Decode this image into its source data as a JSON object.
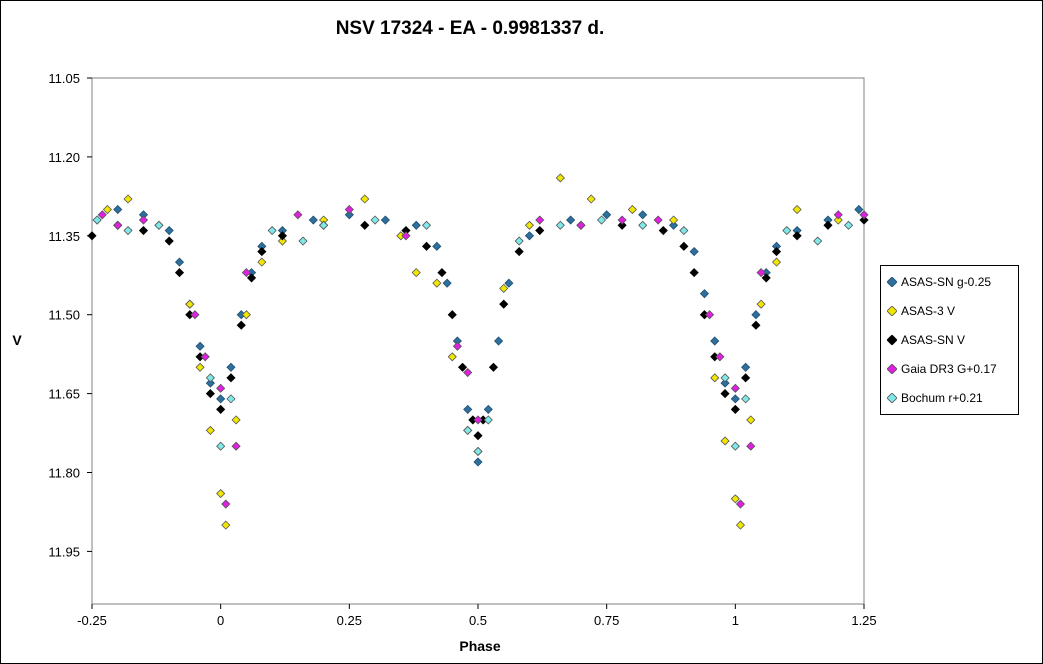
{
  "chart_data": {
    "type": "scatter",
    "title": "NSV 17324 - EA - 0.9981337 d.",
    "xlabel": "Phase",
    "ylabel": "V",
    "xlim": [
      -0.25,
      1.25
    ],
    "ylim": [
      11.05,
      12.05
    ],
    "y_inverted": true,
    "x_ticks": [
      "-0.25",
      "0",
      "0.25",
      "0.5",
      "0.75",
      "1",
      "1.25"
    ],
    "y_ticks": [
      "11.05",
      "11.20",
      "11.35",
      "11.50",
      "11.65",
      "11.80",
      "11.95"
    ],
    "grid": false,
    "legend_position": "right",
    "series": [
      {
        "name": "ASAS-SN g-0.25",
        "color": "#2e6f9b",
        "marker": "diamond",
        "x": [
          -0.24,
          -0.2,
          -0.15,
          -0.1,
          -0.08,
          -0.06,
          -0.04,
          -0.02,
          0.0,
          0.02,
          0.04,
          0.06,
          0.08,
          0.12,
          0.18,
          0.25,
          0.32,
          0.38,
          0.42,
          0.44,
          0.46,
          0.48,
          0.5,
          0.52,
          0.54,
          0.56,
          0.6,
          0.68,
          0.75,
          0.82,
          0.88,
          0.92,
          0.94,
          0.96,
          0.98,
          1.0,
          1.02,
          1.04,
          1.06,
          1.08,
          1.12,
          1.18,
          1.24
        ],
        "y": [
          11.32,
          11.3,
          11.31,
          11.34,
          11.4,
          11.48,
          11.56,
          11.63,
          11.66,
          11.6,
          11.5,
          11.42,
          11.37,
          11.34,
          11.32,
          11.31,
          11.32,
          11.33,
          11.37,
          11.44,
          11.55,
          11.68,
          11.78,
          11.68,
          11.55,
          11.44,
          11.35,
          11.32,
          11.31,
          11.31,
          11.33,
          11.38,
          11.46,
          11.55,
          11.63,
          11.66,
          11.6,
          11.5,
          11.42,
          11.37,
          11.34,
          11.32,
          11.3
        ]
      },
      {
        "name": "ASAS-3 V",
        "color": "#f2e600",
        "marker": "diamond",
        "x": [
          -0.22,
          -0.18,
          -0.12,
          -0.06,
          -0.04,
          -0.02,
          0.0,
          0.01,
          0.03,
          0.05,
          0.08,
          0.12,
          0.2,
          0.28,
          0.35,
          0.38,
          0.42,
          0.45,
          0.48,
          0.5,
          0.55,
          0.6,
          0.66,
          0.72,
          0.8,
          0.88,
          0.94,
          0.96,
          0.98,
          1.0,
          1.01,
          1.03,
          1.05,
          1.08,
          1.12,
          1.2
        ],
        "y": [
          11.3,
          11.28,
          11.33,
          11.48,
          11.6,
          11.72,
          11.84,
          11.9,
          11.7,
          11.5,
          11.4,
          11.36,
          11.32,
          11.28,
          11.35,
          11.42,
          11.44,
          11.58,
          11.72,
          11.76,
          11.45,
          11.33,
          11.24,
          11.28,
          11.3,
          11.32,
          11.5,
          11.62,
          11.74,
          11.85,
          11.9,
          11.7,
          11.48,
          11.4,
          11.3,
          11.32
        ]
      },
      {
        "name": "ASAS-SN V",
        "color": "#000000",
        "marker": "diamond",
        "x": [
          -0.25,
          -0.2,
          -0.15,
          -0.1,
          -0.08,
          -0.06,
          -0.04,
          -0.02,
          0.0,
          0.02,
          0.04,
          0.06,
          0.08,
          0.12,
          0.2,
          0.28,
          0.36,
          0.4,
          0.43,
          0.45,
          0.47,
          0.49,
          0.5,
          0.51,
          0.53,
          0.55,
          0.58,
          0.62,
          0.7,
          0.78,
          0.86,
          0.9,
          0.92,
          0.94,
          0.96,
          0.98,
          1.0,
          1.02,
          1.04,
          1.06,
          1.08,
          1.12,
          1.18,
          1.25
        ],
        "y": [
          11.35,
          11.33,
          11.34,
          11.36,
          11.42,
          11.5,
          11.58,
          11.65,
          11.68,
          11.62,
          11.52,
          11.43,
          11.38,
          11.35,
          11.33,
          11.33,
          11.34,
          11.37,
          11.42,
          11.5,
          11.6,
          11.7,
          11.73,
          11.7,
          11.6,
          11.48,
          11.38,
          11.34,
          11.33,
          11.33,
          11.34,
          11.37,
          11.42,
          11.5,
          11.58,
          11.65,
          11.68,
          11.62,
          11.52,
          11.43,
          11.38,
          11.35,
          11.33,
          11.32
        ]
      },
      {
        "name": "Gaia DR3 G+0.17",
        "color": "#e020e0",
        "marker": "diamond",
        "x": [
          -0.23,
          -0.2,
          -0.15,
          -0.05,
          -0.03,
          0.0,
          0.01,
          0.03,
          0.05,
          0.15,
          0.25,
          0.36,
          0.46,
          0.48,
          0.5,
          0.62,
          0.7,
          0.78,
          0.85,
          0.95,
          0.97,
          1.0,
          1.01,
          1.03,
          1.05,
          1.2,
          1.25
        ],
        "y": [
          11.31,
          11.33,
          11.32,
          11.5,
          11.58,
          11.64,
          11.86,
          11.75,
          11.42,
          11.31,
          11.3,
          11.35,
          11.56,
          11.61,
          11.7,
          11.32,
          11.33,
          11.32,
          11.32,
          11.5,
          11.58,
          11.64,
          11.86,
          11.75,
          11.42,
          11.31,
          11.31
        ]
      },
      {
        "name": "Bochum r+0.21",
        "color": "#7fe8e8",
        "marker": "diamond",
        "x": [
          -0.24,
          -0.18,
          -0.12,
          -0.02,
          0.0,
          0.02,
          0.1,
          0.16,
          0.2,
          0.3,
          0.4,
          0.48,
          0.5,
          0.52,
          0.58,
          0.66,
          0.74,
          0.82,
          0.9,
          0.98,
          1.0,
          1.02,
          1.1,
          1.16,
          1.22
        ],
        "y": [
          11.32,
          11.34,
          11.33,
          11.62,
          11.75,
          11.66,
          11.34,
          11.36,
          11.33,
          11.32,
          11.33,
          11.72,
          11.76,
          11.7,
          11.36,
          11.33,
          11.32,
          11.33,
          11.34,
          11.62,
          11.75,
          11.66,
          11.34,
          11.36,
          11.33
        ]
      }
    ]
  }
}
